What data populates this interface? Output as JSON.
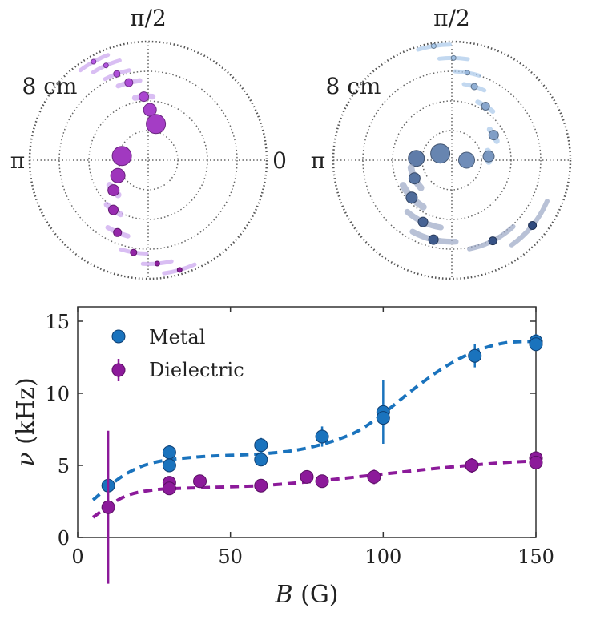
{
  "polar_labels": {
    "top": "π/2",
    "left": "π",
    "right": "0",
    "radius": "8 cm"
  },
  "colors": {
    "metal": "#1a73bd",
    "metal_light": "#a8c8ea",
    "metal_dark": "#2f4a7e",
    "metal_dark_trail": "#9aa6c4",
    "dielectric": "#8c1a9a",
    "dielectric_light": "#b657e6",
    "dielectric_trail": "#c9a2ee",
    "ring": "#555555"
  },
  "chart_data": [
    {
      "type": "scatter",
      "coord": "polar",
      "panel": "dielectric-trajectory",
      "r_max_cm": 8,
      "points": [
        {
          "r": 7.6,
          "theta_deg": 119,
          "size": 3
        },
        {
          "r": 7.0,
          "theta_deg": 114,
          "size": 3
        },
        {
          "r": 6.2,
          "theta_deg": 110,
          "size": 4
        },
        {
          "r": 5.4,
          "theta_deg": 104,
          "size": 5
        },
        {
          "r": 4.3,
          "theta_deg": 94,
          "size": 6
        },
        {
          "r": 3.4,
          "theta_deg": 88,
          "size": 8
        },
        {
          "r": 2.5,
          "theta_deg": 78,
          "size": 12
        },
        {
          "r": 1.8,
          "theta_deg": 171,
          "size": 12
        },
        {
          "r": 2.3,
          "theta_deg": 207,
          "size": 9
        },
        {
          "r": 3.1,
          "theta_deg": 221,
          "size": 7
        },
        {
          "r": 4.1,
          "theta_deg": 235,
          "size": 6
        },
        {
          "r": 5.3,
          "theta_deg": 247,
          "size": 5
        },
        {
          "r": 6.3,
          "theta_deg": 261,
          "size": 4
        },
        {
          "r": 7.0,
          "theta_deg": 275,
          "size": 3
        },
        {
          "r": 7.7,
          "theta_deg": 286,
          "size": 3
        }
      ]
    },
    {
      "type": "scatter",
      "coord": "polar",
      "panel": "metal-trajectory",
      "r_max_cm": 8,
      "points": [
        {
          "r": 7.8,
          "theta_deg": 99,
          "size": 3
        },
        {
          "r": 6.9,
          "theta_deg": 89,
          "size": 3
        },
        {
          "r": 6.0,
          "theta_deg": 80,
          "size": 3
        },
        {
          "r": 5.2,
          "theta_deg": 73,
          "size": 4
        },
        {
          "r": 4.3,
          "theta_deg": 58,
          "size": 5
        },
        {
          "r": 3.3,
          "theta_deg": 31,
          "size": 6
        },
        {
          "r": 2.5,
          "theta_deg": 6,
          "size": 7
        },
        {
          "r": 1.0,
          "theta_deg": 0,
          "size": 10
        },
        {
          "r": 0.9,
          "theta_deg": 150,
          "size": 12
        },
        {
          "r": 2.4,
          "theta_deg": 177,
          "size": 10
        },
        {
          "r": 2.8,
          "theta_deg": 206,
          "size": 7
        },
        {
          "r": 3.7,
          "theta_deg": 223,
          "size": 7
        },
        {
          "r": 4.6,
          "theta_deg": 245,
          "size": 6
        },
        {
          "r": 5.5,
          "theta_deg": 257,
          "size": 6
        },
        {
          "r": 6.1,
          "theta_deg": 297,
          "size": 5
        },
        {
          "r": 7.0,
          "theta_deg": 321,
          "size": 5
        }
      ]
    },
    {
      "type": "scatter",
      "title": "",
      "xlabel": "B (G)",
      "ylabel": "ν (kHz)",
      "xlim": [
        0,
        150
      ],
      "ylim": [
        0,
        16
      ],
      "xticks": [
        "0",
        "50",
        "100",
        "150"
      ],
      "yticks": [
        "0",
        "5",
        "10",
        "15"
      ],
      "legend": [
        "Metal",
        "Dielectric"
      ],
      "legend_position": "top-left",
      "series": [
        {
          "name": "Metal",
          "points": [
            {
              "x": 10,
              "y": 3.6,
              "err": 0.4
            },
            {
              "x": 30,
              "y": 5.9,
              "err": 0.5
            },
            {
              "x": 30,
              "y": 5.0,
              "err": 0.3
            },
            {
              "x": 60,
              "y": 6.4,
              "err": 0.5
            },
            {
              "x": 60,
              "y": 5.4,
              "err": 0.4
            },
            {
              "x": 80,
              "y": 7.0,
              "err": 0.7
            },
            {
              "x": 100,
              "y": 8.7,
              "err": 2.2
            },
            {
              "x": 100,
              "y": 8.3,
              "err": 0.5
            },
            {
              "x": 130,
              "y": 12.6,
              "err": 0.8
            },
            {
              "x": 150,
              "y": 13.6,
              "err": 0.5
            },
            {
              "x": 150,
              "y": 13.4,
              "err": 0.3
            }
          ],
          "fit": [
            [
              5,
              2.6
            ],
            [
              15,
              4.3
            ],
            [
              25,
              5.2
            ],
            [
              40,
              5.6
            ],
            [
              60,
              5.8
            ],
            [
              75,
              6.2
            ],
            [
              90,
              7.2
            ],
            [
              100,
              8.6
            ],
            [
              110,
              10.3
            ],
            [
              120,
              11.8
            ],
            [
              130,
              12.9
            ],
            [
              140,
              13.5
            ],
            [
              150,
              13.6
            ]
          ]
        },
        {
          "name": "Dielectric",
          "points": [
            {
              "x": 10,
              "y": 2.1,
              "err": 5.3
            },
            {
              "x": 30,
              "y": 3.8,
              "err": 0.3
            },
            {
              "x": 30,
              "y": 3.4,
              "err": 0.3
            },
            {
              "x": 40,
              "y": 3.9,
              "err": 0.3
            },
            {
              "x": 60,
              "y": 3.6,
              "err": 0.2
            },
            {
              "x": 75,
              "y": 4.2,
              "err": 0.3
            },
            {
              "x": 80,
              "y": 3.9,
              "err": 0.2
            },
            {
              "x": 97,
              "y": 4.2,
              "err": 0.5
            },
            {
              "x": 129,
              "y": 5.0,
              "err": 0.5
            },
            {
              "x": 150,
              "y": 5.5,
              "err": 0.3
            },
            {
              "x": 150,
              "y": 5.2,
              "err": 0.3
            }
          ],
          "fit": [
            [
              5,
              1.4
            ],
            [
              15,
              2.8
            ],
            [
              25,
              3.3
            ],
            [
              40,
              3.45
            ],
            [
              60,
              3.6
            ],
            [
              80,
              3.95
            ],
            [
              100,
              4.4
            ],
            [
              120,
              4.85
            ],
            [
              140,
              5.2
            ],
            [
              150,
              5.3
            ]
          ]
        }
      ]
    }
  ]
}
